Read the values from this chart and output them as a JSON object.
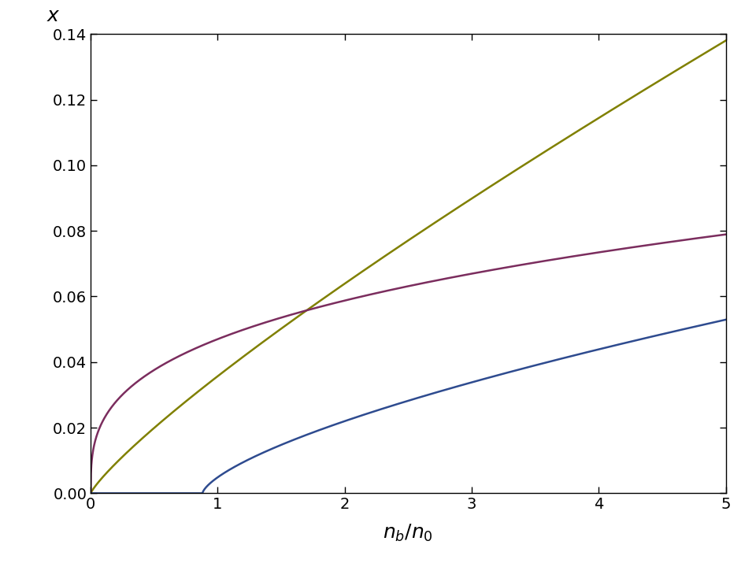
{
  "title": "",
  "xlabel": "$n_b/n_0$",
  "ylabel": "x",
  "xlim": [
    0,
    5
  ],
  "ylim": [
    0,
    0.14
  ],
  "yticks": [
    0.0,
    0.02,
    0.04,
    0.06,
    0.08,
    0.1,
    0.12,
    0.14
  ],
  "xticks": [
    0,
    1,
    2,
    3,
    4,
    5
  ],
  "proton_color": "#808000",
  "electron_color": "#7B2D5E",
  "muon_color": "#2E4B8F",
  "line_width": 1.8,
  "background_color": "#FFFFFF",
  "muon_threshold": 0.88,
  "proton_A": 0.041,
  "proton_B": 0.35,
  "electron_A": 0.047,
  "electron_B": 0.33,
  "muon_C": 0.027,
  "muon_D": 0.5
}
